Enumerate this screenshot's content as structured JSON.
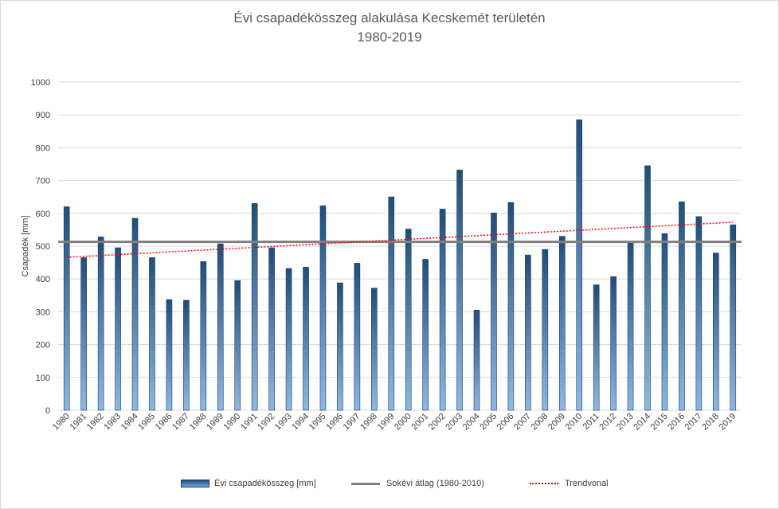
{
  "chart_data": {
    "type": "bar",
    "title": "Évi csapadékösszeg alakulása Kecskemét területén",
    "subtitle": "1980-2019",
    "ylabel": "Csapadék [mm]",
    "ylim": [
      0,
      1000
    ],
    "yticks": [
      0,
      100,
      200,
      300,
      400,
      500,
      600,
      700,
      800,
      900,
      1000
    ],
    "grid": true,
    "legend_position": "bottom",
    "categories": [
      "1980",
      "1981",
      "1982",
      "1983",
      "1984",
      "1985",
      "1986",
      "1987",
      "1988",
      "1989",
      "1990",
      "1991",
      "1992",
      "1993",
      "1994",
      "1995",
      "1996",
      "1997",
      "1998",
      "1999",
      "2000",
      "2001",
      "2002",
      "2003",
      "2004",
      "2005",
      "2006",
      "2007",
      "2008",
      "2009",
      "2010",
      "2011",
      "2012",
      "2013",
      "2014",
      "2015",
      "2016",
      "2017",
      "2018",
      "2019"
    ],
    "series": [
      {
        "name": "Évi csapadékösszeg [mm]",
        "values": [
          620,
          465,
          528,
          495,
          585,
          465,
          337,
          335,
          453,
          507,
          395,
          630,
          495,
          432,
          436,
          623,
          388,
          448,
          372,
          650,
          552,
          460,
          613,
          732,
          305,
          601,
          633,
          473,
          490,
          530,
          885,
          382,
          407,
          513,
          745,
          538,
          635,
          590,
          479,
          565
        ],
        "color": "#2e5c8f"
      },
      {
        "name": "Sokévi átlag (1980-2010)",
        "type": "line",
        "value": 513,
        "color": "#7f7f7f"
      },
      {
        "name": "Trendvonal",
        "type": "line",
        "style": "dotted",
        "start": 466,
        "end": 573,
        "color": "#ff0000"
      }
    ]
  }
}
